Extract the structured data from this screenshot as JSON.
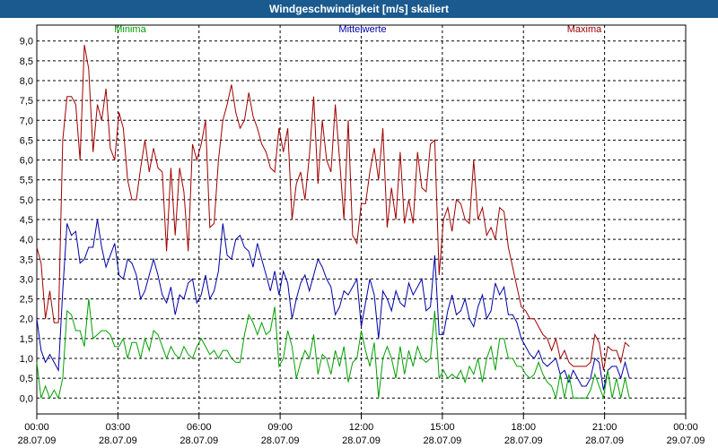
{
  "window": {
    "title": "Windgeschwindigkeit [m/s] skaliert"
  },
  "legend": {
    "min": "Minima",
    "mean": "Mittelwerte",
    "max": "Maxima"
  },
  "colors": {
    "min": "#00a000",
    "mean": "#0000a8",
    "max": "#a00000",
    "title_bg": "#1a5a8e"
  },
  "chart_data": {
    "type": "line",
    "title": "Windgeschwindigkeit [m/s] skaliert",
    "ylabel": "",
    "xlabel": "",
    "ylim": [
      -0.4,
      9.4
    ],
    "xlim": [
      0,
      24
    ],
    "grid": true,
    "yticks": [
      "0,0",
      "0,5",
      "1,0",
      "1,5",
      "2,0",
      "2,5",
      "3,0",
      "3,5",
      "4,0",
      "4,5",
      "5,0",
      "5,5",
      "6,0",
      "6,5",
      "7,0",
      "7,5",
      "8,0",
      "8,5",
      "9,0"
    ],
    "xticks": [
      {
        "time": "00:00",
        "date": "28.07.09"
      },
      {
        "time": "03:00",
        "date": "28.07.09"
      },
      {
        "time": "06:00",
        "date": "28.07.09"
      },
      {
        "time": "09:00",
        "date": "28.07.09"
      },
      {
        "time": "12:00",
        "date": "28.07.09"
      },
      {
        "time": "15:00",
        "date": "28.07.09"
      },
      {
        "time": "18:00",
        "date": "28.07.09"
      },
      {
        "time": "21:00",
        "date": "28.07.09"
      },
      {
        "time": "00:00",
        "date": "29.07.09"
      }
    ],
    "series": [
      {
        "name": "Maxima",
        "key": "max",
        "x_start": 0,
        "x_step": 0.16,
        "values": [
          3.8,
          3.4,
          2.0,
          2.7,
          1.9,
          1.9,
          6.5,
          7.6,
          7.6,
          7.4,
          6.0,
          8.9,
          8.3,
          6.2,
          7.4,
          7.0,
          7.8,
          6.3,
          6.0,
          7.2,
          6.8,
          5.5,
          5.0,
          5.0,
          5.8,
          6.5,
          5.7,
          6.3,
          5.8,
          5.7,
          3.7,
          5.8,
          4.1,
          5.8,
          5.2,
          3.7,
          6.4,
          6.0,
          6.4,
          7.0,
          4.3,
          4.4,
          6.0,
          7.0,
          7.4,
          7.9,
          7.2,
          6.8,
          7.0,
          7.7,
          7.1,
          6.8,
          6.4,
          6.2,
          5.8,
          5.7,
          6.8,
          6.2,
          6.8,
          4.5,
          5.4,
          5.7,
          5.0,
          6.1,
          7.6,
          5.4,
          7.0,
          6.0,
          5.7,
          7.4,
          6.0,
          4.5,
          7.0,
          4.1,
          3.9,
          4.9,
          4.9,
          5.7,
          6.3,
          5.5,
          6.8,
          4.3,
          5.3,
          4.5,
          6.2,
          4.4,
          5.0,
          4.4,
          6.2,
          5.3,
          5.2,
          6.4,
          6.5,
          3.1,
          4.5,
          4.8,
          4.2,
          5.0,
          4.9,
          4.5,
          4.4,
          6.0,
          4.5,
          4.8,
          4.1,
          4.3,
          4.0,
          4.8,
          4.7,
          3.8,
          3.3,
          2.8,
          2.3,
          2.2,
          2.0,
          2.0,
          1.8,
          1.6,
          1.5,
          1.2,
          1.5,
          1.0,
          1.2,
          0.9,
          0.8,
          0.8,
          0.8,
          0.8,
          0.9,
          1.6,
          1.4,
          0.7,
          1.3,
          1.2,
          1.2,
          0.9,
          1.4,
          1.3
        ]
      },
      {
        "name": "Mittelwerte",
        "key": "mean",
        "x_start": 0,
        "x_step": 0.16,
        "values": [
          2.0,
          1.2,
          0.9,
          1.1,
          0.9,
          0.7,
          2.7,
          4.4,
          4.1,
          4.2,
          3.4,
          3.5,
          3.8,
          3.8,
          4.5,
          3.8,
          3.3,
          3.6,
          3.9,
          3.1,
          3.0,
          3.5,
          3.4,
          3.1,
          2.5,
          2.7,
          3.1,
          3.5,
          3.1,
          2.6,
          2.4,
          2.8,
          2.1,
          2.6,
          2.5,
          2.9,
          3.0,
          2.4,
          2.6,
          3.1,
          2.5,
          2.7,
          3.2,
          4.4,
          3.6,
          3.5,
          4.0,
          4.1,
          3.8,
          3.7,
          3.3,
          3.9,
          3.5,
          3.1,
          2.7,
          3.2,
          2.6,
          3.2,
          2.9,
          2.0,
          2.5,
          2.9,
          3.1,
          2.7,
          3.1,
          3.5,
          3.3,
          3.0,
          2.8,
          2.1,
          2.3,
          2.7,
          2.6,
          2.8,
          3.0,
          1.8,
          2.4,
          3.0,
          2.6,
          1.5,
          2.7,
          2.5,
          2.2,
          2.7,
          2.4,
          2.3,
          2.9,
          2.6,
          2.8,
          3.0,
          2.2,
          2.3,
          3.6,
          1.6,
          1.6,
          2.2,
          2.6,
          2.1,
          2.2,
          2.5,
          2.0,
          1.8,
          2.3,
          2.6,
          2.0,
          2.2,
          2.9,
          2.6,
          2.8,
          2.1,
          2.1,
          1.9,
          1.5,
          1.3,
          1.1,
          1.0,
          1.2,
          0.9,
          0.8,
          0.9,
          1.0,
          0.6,
          0.7,
          0.4,
          0.7,
          0.5,
          0.3,
          0.3,
          0.5,
          1.0,
          0.9,
          0.2,
          0.7,
          0.8,
          0.8,
          0.5,
          0.9,
          0.5
        ]
      },
      {
        "name": "Minima",
        "key": "min",
        "x_start": 0,
        "x_step": 0.16,
        "values": [
          0.9,
          0.0,
          0.3,
          0.0,
          0.2,
          0.0,
          0.5,
          2.2,
          2.1,
          1.7,
          1.7,
          1.3,
          2.5,
          1.5,
          1.6,
          1.7,
          1.7,
          1.6,
          1.3,
          1.3,
          1.5,
          1.0,
          1.4,
          1.4,
          1.0,
          1.5,
          1.2,
          1.7,
          1.6,
          1.3,
          1.0,
          1.3,
          1.1,
          1.0,
          1.3,
          1.1,
          1.0,
          1.3,
          1.5,
          1.3,
          1.1,
          1.2,
          1.0,
          1.2,
          1.2,
          1.0,
          0.9,
          0.9,
          1.6,
          2.1,
          1.9,
          1.6,
          1.9,
          1.6,
          1.7,
          2.3,
          0.8,
          1.0,
          1.7,
          1.3,
          0.5,
          0.9,
          1.2,
          1.0,
          1.6,
          0.6,
          1.1,
          1.0,
          0.6,
          1.2,
          0.8,
          1.3,
          0.4,
          0.9,
          1.0,
          1.7,
          1.2,
          0.8,
          1.4,
          0.0,
          1.0,
          1.3,
          1.0,
          0.5,
          1.3,
          0.6,
          1.2,
          0.8,
          1.3,
          1.0,
          0.9,
          1.0,
          2.2,
          0.5,
          0.7,
          0.5,
          0.6,
          0.5,
          0.7,
          0.4,
          0.8,
          0.6,
          1.0,
          0.4,
          1.0,
          1.3,
          0.7,
          1.5,
          1.5,
          1.0,
          1.0,
          0.8,
          0.8,
          0.6,
          0.5,
          0.6,
          0.9,
          0.6,
          0.4,
          0.3,
          0.0,
          0.6,
          0.0,
          0.6,
          0.0,
          0.0,
          0.0,
          0.0,
          0.2,
          0.6,
          0.3,
          0.0,
          0.7,
          0.0,
          0.5,
          0.0,
          0.5,
          0.0
        ]
      }
    ]
  }
}
